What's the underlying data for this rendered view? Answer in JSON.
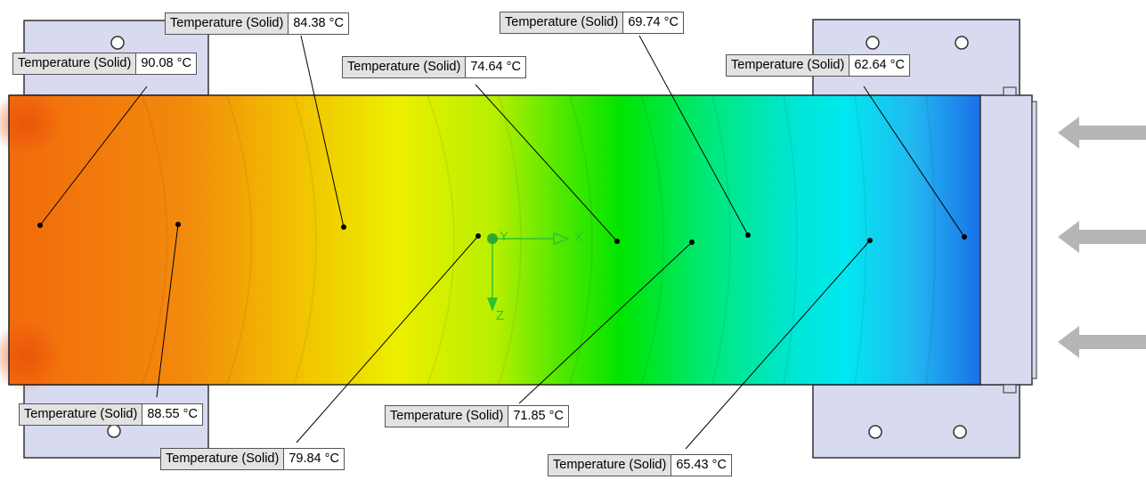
{
  "probe_name": "Temperature (Solid)",
  "probes": [
    {
      "id": "p1",
      "value": "90.08 °C"
    },
    {
      "id": "p2",
      "value": "84.38 °C"
    },
    {
      "id": "p3",
      "value": "74.64 °C"
    },
    {
      "id": "p4",
      "value": "69.74 °C"
    },
    {
      "id": "p5",
      "value": "62.64 °C"
    },
    {
      "id": "p6",
      "value": "88.55 °C"
    },
    {
      "id": "p7",
      "value": "79.84 °C"
    },
    {
      "id": "p8",
      "value": "71.85 °C"
    },
    {
      "id": "p9",
      "value": "65.43 °C"
    }
  ],
  "axes": {
    "x": "X",
    "y": "Y",
    "z": "Z"
  },
  "colors": {
    "gradient": [
      "#f26a0c",
      "#f28a0c",
      "#f2c300",
      "#ecef00",
      "#b8ef00",
      "#4de800",
      "#00e500",
      "#00e87a",
      "#00e6d6",
      "#00e8f0",
      "#22b8f0",
      "#1a6fe8"
    ],
    "mount_plate": "#d8daf0",
    "flow_arrow": "#b5b5b5",
    "axis": "#2fc22f"
  },
  "icons": [
    "flow-arrow-icon",
    "axis-triad-icon",
    "mounting-hole-icon"
  ]
}
